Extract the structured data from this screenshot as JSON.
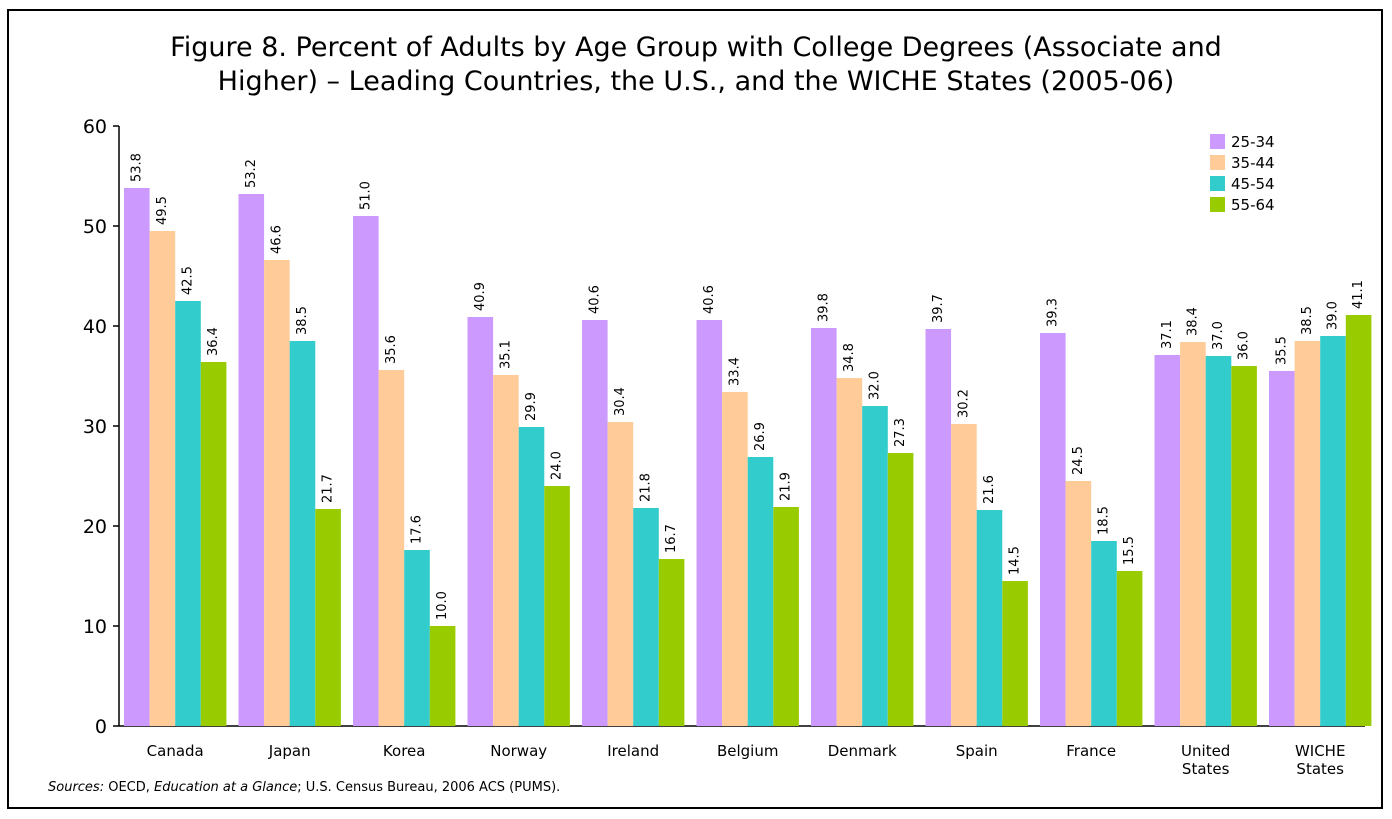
{
  "chart_data": {
    "type": "bar",
    "title_lines": [
      "Figure 8. Percent of Adults by Age Group with College Degrees (Associate and",
      "Higher) – Leading Countries, the U.S., and the WICHE States (2005-06)"
    ],
    "categories": [
      [
        "Canada"
      ],
      [
        "Japan"
      ],
      [
        "Korea"
      ],
      [
        "Norway"
      ],
      [
        "Ireland"
      ],
      [
        "Belgium"
      ],
      [
        "Denmark"
      ],
      [
        "Spain"
      ],
      [
        "France"
      ],
      [
        "United",
        "States"
      ],
      [
        "WICHE",
        "States"
      ]
    ],
    "series": [
      {
        "name": "25-34",
        "color": "#cc99ff",
        "values": [
          53.8,
          53.2,
          51.0,
          40.9,
          40.6,
          40.6,
          39.8,
          39.7,
          39.3,
          37.1,
          35.5
        ]
      },
      {
        "name": "35-44",
        "color": "#ffcc99",
        "values": [
          49.5,
          46.6,
          35.6,
          35.1,
          30.4,
          33.4,
          34.8,
          30.2,
          24.5,
          38.4,
          38.5
        ]
      },
      {
        "name": "45-54",
        "color": "#33cccc",
        "values": [
          42.5,
          38.5,
          17.6,
          29.9,
          21.8,
          26.9,
          32.0,
          21.6,
          18.5,
          37.0,
          39.0
        ]
      },
      {
        "name": "55-64",
        "color": "#99cc00",
        "values": [
          36.4,
          21.7,
          10.0,
          24.0,
          16.7,
          21.9,
          27.3,
          14.5,
          15.5,
          36.0,
          41.1
        ]
      }
    ],
    "ylim": [
      0,
      60
    ],
    "yticks": [
      0,
      10,
      20,
      30,
      40,
      50,
      60
    ],
    "legend_position": "top-right",
    "grid": false,
    "xlabel": "",
    "ylabel": ""
  },
  "source": {
    "label": "Sources:",
    "part1": "OECD,",
    "italic": "Education at a Glance",
    "part2": "; U.S. Census Bureau, 2006 ACS (PUMS)."
  }
}
